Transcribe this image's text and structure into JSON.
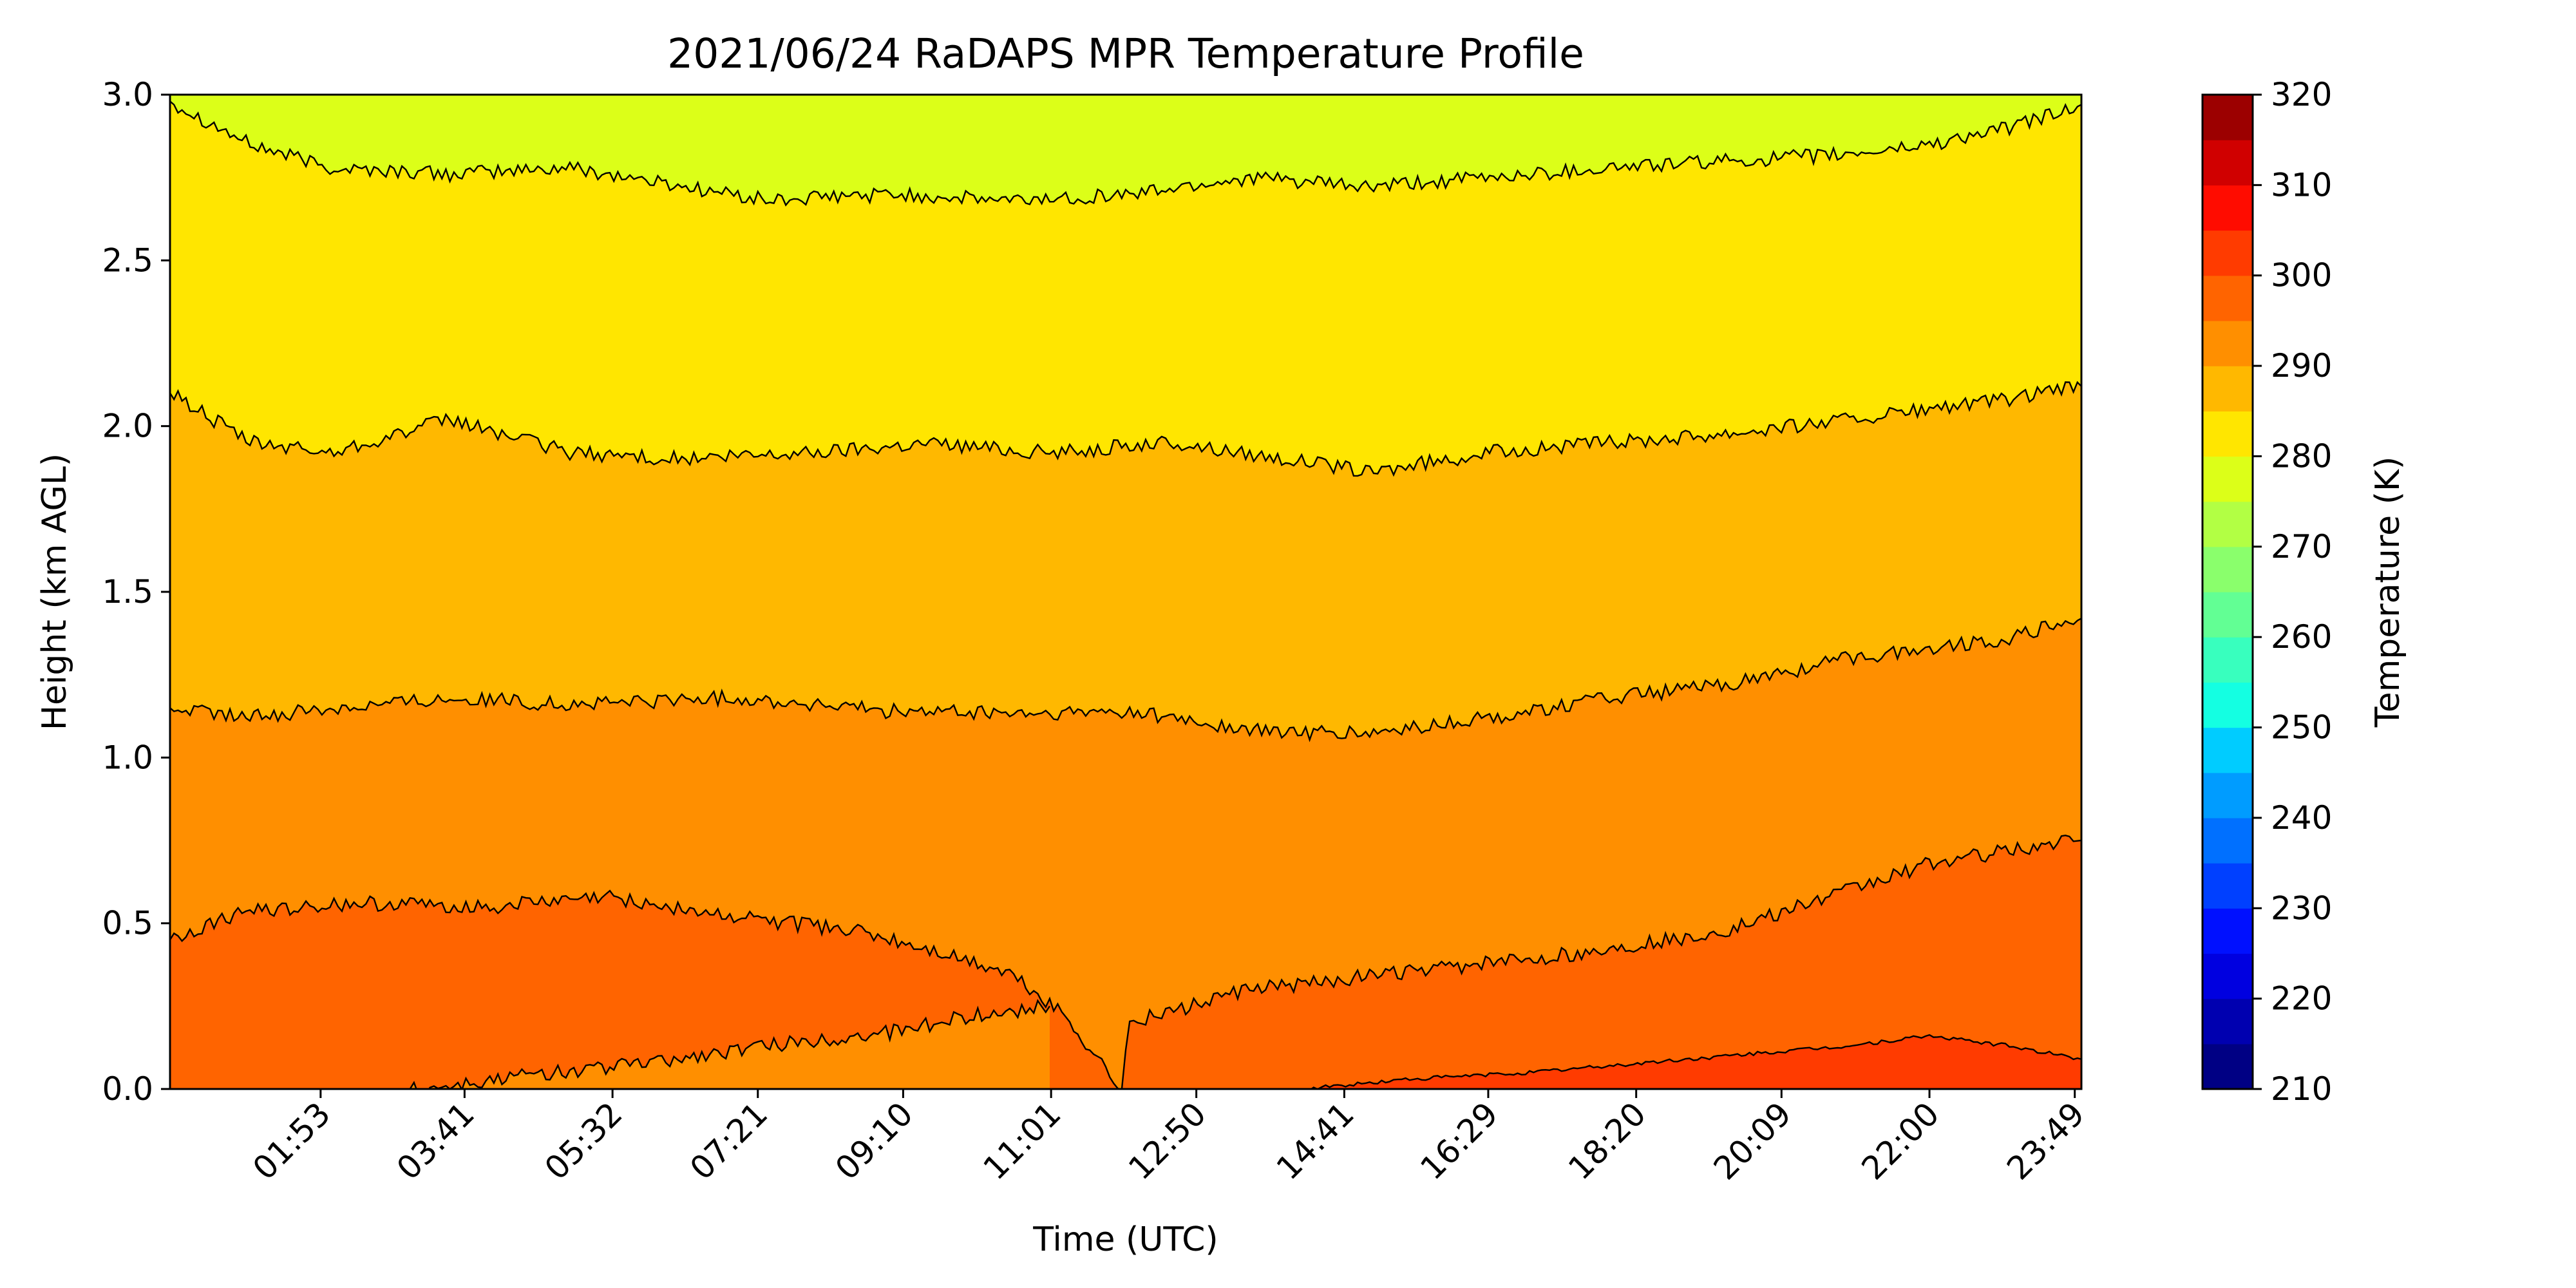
{
  "chart_data": {
    "type": "heatmap",
    "subtype": "filled-contour",
    "title": "2021/06/24 RaDAPS MPR Temperature Profile",
    "xlabel": "Time (UTC)",
    "ylabel": "Height (km AGL)",
    "colorbar_label": "Temperature (K)",
    "x_tick_labels": [
      "01:53",
      "03:41",
      "05:32",
      "07:21",
      "09:10",
      "11:01",
      "12:50",
      "14:41",
      "16:29",
      "18:20",
      "20:09",
      "22:00",
      "23:49"
    ],
    "x_range_hours": [
      0.0,
      23.9
    ],
    "x_tick_hours": [
      1.883,
      3.683,
      5.533,
      7.35,
      9.167,
      11.017,
      12.833,
      14.683,
      16.483,
      18.333,
      20.15,
      22.0,
      23.817
    ],
    "y_ticks": [
      0.0,
      0.5,
      1.0,
      1.5,
      2.0,
      2.5,
      3.0
    ],
    "y_tick_labels": [
      "0.0",
      "0.5",
      "1.0",
      "1.5",
      "2.0",
      "2.5",
      "3.0"
    ],
    "ylim": [
      0.0,
      3.0
    ],
    "colorbar_ticks": [
      "210",
      "220",
      "230",
      "240",
      "250",
      "260",
      "270",
      "280",
      "290",
      "300",
      "310",
      "320"
    ],
    "colorbar_range": [
      210,
      320
    ],
    "colorbar_levels": [
      210,
      215,
      220,
      225,
      230,
      235,
      240,
      245,
      250,
      255,
      260,
      265,
      270,
      275,
      280,
      285,
      290,
      295,
      300,
      305,
      310,
      315,
      320
    ],
    "colorbar_colors": [
      "#000084",
      "#0000b0",
      "#0000e0",
      "#0010ff",
      "#0040ff",
      "#0070ff",
      "#009cff",
      "#00ccff",
      "#14ffe2",
      "#38ffbe",
      "#62ff94",
      "#8aff6c",
      "#b2ff44",
      "#dcff18",
      "#ffe600",
      "#ffb800",
      "#ff8f00",
      "#ff6400",
      "#ff3b00",
      "#ff0c00",
      "#d00000",
      "#9c0000"
    ],
    "contour_levels_K": [
      275,
      280,
      285,
      290,
      295,
      300
    ],
    "bands": [
      {
        "temperature_range_K": [
          300,
          305
        ],
        "color": "#ff3b00"
      },
      {
        "temperature_range_K": [
          295,
          300
        ],
        "color": "#ff6400"
      },
      {
        "temperature_range_K": [
          290,
          295
        ],
        "color": "#ff8f00"
      },
      {
        "temperature_range_K": [
          285,
          290
        ],
        "color": "#ffb800"
      },
      {
        "temperature_range_K": [
          280,
          285
        ],
        "color": "#ffe600"
      },
      {
        "temperature_range_K": [
          275,
          280
        ],
        "color": "#dcff18"
      }
    ],
    "contours": [
      {
        "level_K": 280,
        "points": [
          [
            0.0,
            2.98
          ],
          [
            1.0,
            2.85
          ],
          [
            2.0,
            2.78
          ],
          [
            3.5,
            2.76
          ],
          [
            5.0,
            2.78
          ],
          [
            6.5,
            2.72
          ],
          [
            7.5,
            2.68
          ],
          [
            9.0,
            2.7
          ],
          [
            10.5,
            2.68
          ],
          [
            12.0,
            2.7
          ],
          [
            13.5,
            2.75
          ],
          [
            15.0,
            2.72
          ],
          [
            16.5,
            2.75
          ],
          [
            18.0,
            2.78
          ],
          [
            19.5,
            2.8
          ],
          [
            21.0,
            2.82
          ],
          [
            22.0,
            2.85
          ],
          [
            23.0,
            2.9
          ],
          [
            23.9,
            2.97
          ]
        ]
      },
      {
        "level_K": 285,
        "points": [
          [
            0.0,
            2.1
          ],
          [
            1.0,
            1.95
          ],
          [
            2.0,
            1.92
          ],
          [
            3.5,
            2.02
          ],
          [
            5.0,
            1.92
          ],
          [
            6.5,
            1.9
          ],
          [
            8.0,
            1.92
          ],
          [
            9.5,
            1.95
          ],
          [
            11.0,
            1.92
          ],
          [
            12.5,
            1.95
          ],
          [
            14.0,
            1.9
          ],
          [
            15.0,
            1.86
          ],
          [
            16.5,
            1.92
          ],
          [
            18.0,
            1.95
          ],
          [
            19.5,
            1.98
          ],
          [
            21.0,
            2.02
          ],
          [
            22.0,
            2.05
          ],
          [
            23.0,
            2.08
          ],
          [
            23.9,
            2.12
          ]
        ]
      },
      {
        "level_K": 290,
        "points": [
          [
            0.0,
            1.15
          ],
          [
            1.0,
            1.12
          ],
          [
            2.0,
            1.15
          ],
          [
            3.5,
            1.18
          ],
          [
            5.0,
            1.16
          ],
          [
            7.0,
            1.18
          ],
          [
            9.0,
            1.14
          ],
          [
            11.0,
            1.13
          ],
          [
            12.0,
            1.14
          ],
          [
            13.5,
            1.08
          ],
          [
            15.0,
            1.07
          ],
          [
            16.5,
            1.12
          ],
          [
            18.0,
            1.18
          ],
          [
            19.5,
            1.22
          ],
          [
            21.0,
            1.3
          ],
          [
            22.0,
            1.33
          ],
          [
            23.0,
            1.36
          ],
          [
            23.9,
            1.42
          ]
        ]
      },
      {
        "level_K": 295,
        "points": [
          [
            0.0,
            0.45
          ],
          [
            1.0,
            0.54
          ],
          [
            2.5,
            0.56
          ],
          [
            4.0,
            0.55
          ],
          [
            5.5,
            0.58
          ],
          [
            7.0,
            0.52
          ],
          [
            8.5,
            0.48
          ],
          [
            9.5,
            0.42
          ],
          [
            10.5,
            0.35
          ],
          [
            11.2,
            0.22
          ],
          [
            11.9,
            0.0
          ],
          [
            12.0,
            0.2
          ],
          [
            13.5,
            0.3
          ],
          [
            15.0,
            0.34
          ],
          [
            16.5,
            0.38
          ],
          [
            18.0,
            0.42
          ],
          [
            19.5,
            0.48
          ],
          [
            21.0,
            0.6
          ],
          [
            22.0,
            0.68
          ],
          [
            23.0,
            0.72
          ],
          [
            23.9,
            0.75
          ]
        ]
      },
      {
        "level_K": 300,
        "points": [
          [
            14.2,
            0.0
          ],
          [
            15.5,
            0.03
          ],
          [
            17.0,
            0.05
          ],
          [
            18.5,
            0.08
          ],
          [
            20.0,
            0.11
          ],
          [
            21.0,
            0.13
          ],
          [
            22.0,
            0.16
          ],
          [
            23.0,
            0.13
          ],
          [
            23.9,
            0.09
          ]
        ]
      },
      {
        "level_K": 295,
        "points": [
          [
            3.0,
            0.0
          ],
          [
            4.5,
            0.04
          ],
          [
            6.0,
            0.08
          ],
          [
            7.5,
            0.13
          ],
          [
            9.0,
            0.17
          ],
          [
            10.0,
            0.22
          ],
          [
            11.0,
            0.25
          ]
        ]
      }
    ]
  }
}
